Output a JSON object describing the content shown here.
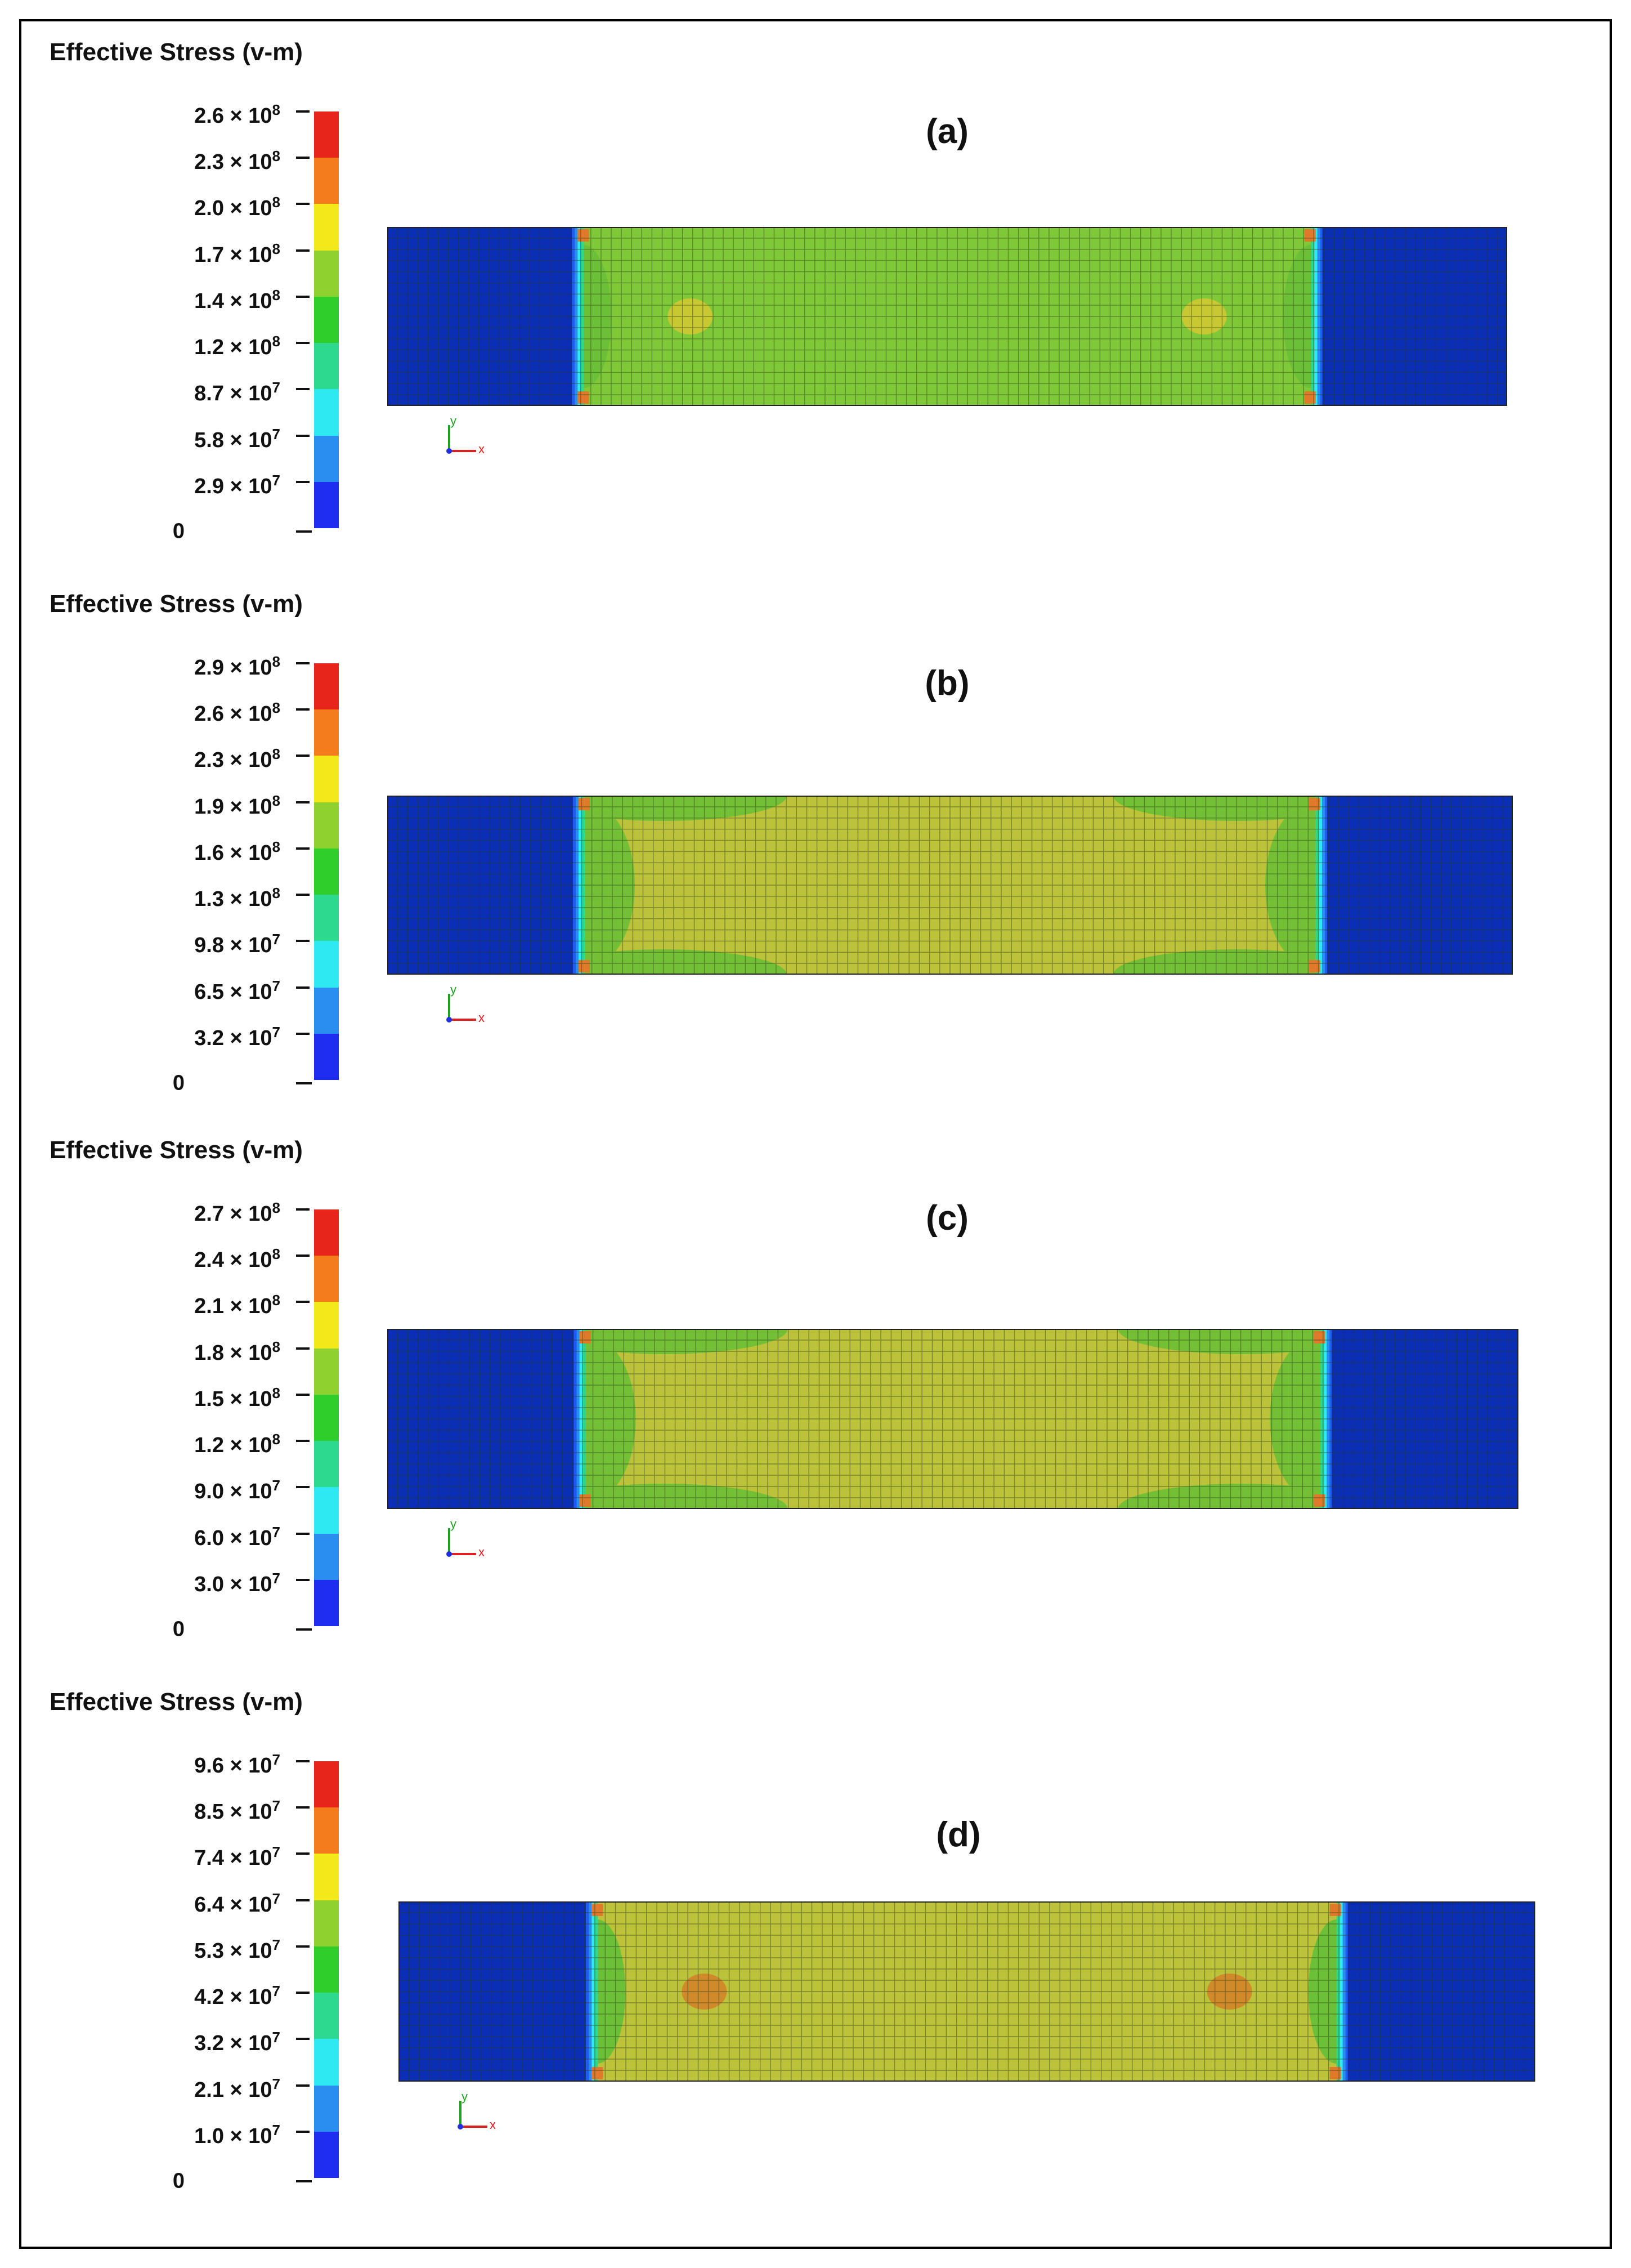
{
  "panels": [
    {
      "id": "a",
      "label": "(a)",
      "legend_title": "Effective Stress (v-m)",
      "legend_ticks": [
        {
          "mantissa": "2.6",
          "exp": "8"
        },
        {
          "mantissa": "2.3",
          "exp": "8"
        },
        {
          "mantissa": "2.0",
          "exp": "8"
        },
        {
          "mantissa": "1.7",
          "exp": "8"
        },
        {
          "mantissa": "1.4",
          "exp": "8"
        },
        {
          "mantissa": "1.2",
          "exp": "8"
        },
        {
          "mantissa": "8.7",
          "exp": "7"
        },
        {
          "mantissa": "5.8",
          "exp": "7"
        },
        {
          "mantissa": "2.9",
          "exp": "7"
        }
      ],
      "legend_zero": "0",
      "middle_color": "#7fc837",
      "edge_color": "#7fc837",
      "spot_color": "#c8c832",
      "spots": true,
      "edge_regions": false
    },
    {
      "id": "b",
      "label": "(b)",
      "legend_title": "Effective Stress (v-m)",
      "legend_ticks": [
        {
          "mantissa": "2.9",
          "exp": "8"
        },
        {
          "mantissa": "2.6",
          "exp": "8"
        },
        {
          "mantissa": "2.3",
          "exp": "8"
        },
        {
          "mantissa": "1.9",
          "exp": "8"
        },
        {
          "mantissa": "1.6",
          "exp": "8"
        },
        {
          "mantissa": "1.3",
          "exp": "8"
        },
        {
          "mantissa": "9.8",
          "exp": "7"
        },
        {
          "mantissa": "6.5",
          "exp": "7"
        },
        {
          "mantissa": "3.2",
          "exp": "7"
        }
      ],
      "legend_zero": "0",
      "middle_color": "#bcc23a",
      "edge_color": "#73bf35",
      "spot_color": "#bcc23a",
      "spots": false,
      "edge_regions": true
    },
    {
      "id": "c",
      "label": "(c)",
      "legend_title": "Effective Stress (v-m)",
      "legend_ticks": [
        {
          "mantissa": "2.7",
          "exp": "8"
        },
        {
          "mantissa": "2.4",
          "exp": "8"
        },
        {
          "mantissa": "2.1",
          "exp": "8"
        },
        {
          "mantissa": "1.8",
          "exp": "8"
        },
        {
          "mantissa": "1.5",
          "exp": "8"
        },
        {
          "mantissa": "1.2",
          "exp": "8"
        },
        {
          "mantissa": "9.0",
          "exp": "7"
        },
        {
          "mantissa": "6.0",
          "exp": "7"
        },
        {
          "mantissa": "3.0",
          "exp": "7"
        }
      ],
      "legend_zero": "0",
      "middle_color": "#bcc23a",
      "edge_color": "#73bf35",
      "spot_color": "#bcc23a",
      "spots": false,
      "edge_regions": true
    },
    {
      "id": "d",
      "label": "(d)",
      "legend_title": "Effective Stress (v-m)",
      "legend_ticks": [
        {
          "mantissa": "9.6",
          "exp": "7"
        },
        {
          "mantissa": "8.5",
          "exp": "7"
        },
        {
          "mantissa": "7.4",
          "exp": "7"
        },
        {
          "mantissa": "6.4",
          "exp": "7"
        },
        {
          "mantissa": "5.3",
          "exp": "7"
        },
        {
          "mantissa": "4.2",
          "exp": "7"
        },
        {
          "mantissa": "3.2",
          "exp": "7"
        },
        {
          "mantissa": "2.1",
          "exp": "7"
        },
        {
          "mantissa": "1.0",
          "exp": "7"
        }
      ],
      "legend_zero": "0",
      "middle_color": "#bcc23a",
      "edge_color": "#bcc23a",
      "spot_color": "#d08a2a",
      "spots": true,
      "edge_regions": false
    }
  ],
  "colormap": [
    "#e8251a",
    "#f47c1c",
    "#f2e81a",
    "#8fd12e",
    "#2fce2a",
    "#2cd98f",
    "#2ee8f2",
    "#2a8ef0",
    "#1f2df0"
  ],
  "colors": {
    "grip_blue": "#0a2fb4",
    "mesh_line": "#2b3a1a",
    "axis_x": "#e02020",
    "axis_y": "#20a020",
    "axis_z": "#2030e0"
  },
  "axis_labels": {
    "x": "x",
    "y": "y"
  }
}
